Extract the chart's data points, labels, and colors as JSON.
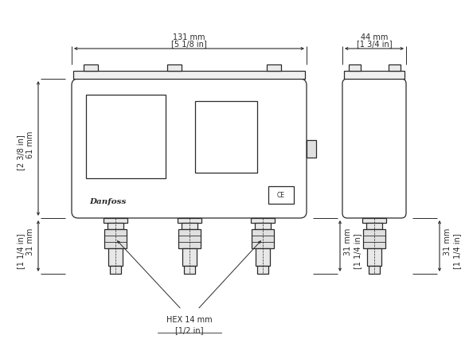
{
  "bg_color": "#ffffff",
  "line_color": "#2a2a2a",
  "annotations": {
    "width_mm": "131 mm",
    "width_in": "[5 1/8 in]",
    "height_mm": "61 mm",
    "height_in": "[2 3/8 in]",
    "hex_mm": "HEX 14 mm",
    "hex_in": "[1/2 in]",
    "bottom_left_mm": "31 mm",
    "bottom_left_in": "[1 1/4 in]",
    "bottom_right_mm": "31 mm",
    "bottom_right_in": "[1 1/4 in]",
    "side_width_mm": "44 mm",
    "side_width_in": "[1 3/4 in]",
    "side_bottom_mm": "31 mm",
    "side_bottom_in": "[1 1/4 in]",
    "danfoss_text": "Danfoss",
    "ce_text": "CE"
  }
}
